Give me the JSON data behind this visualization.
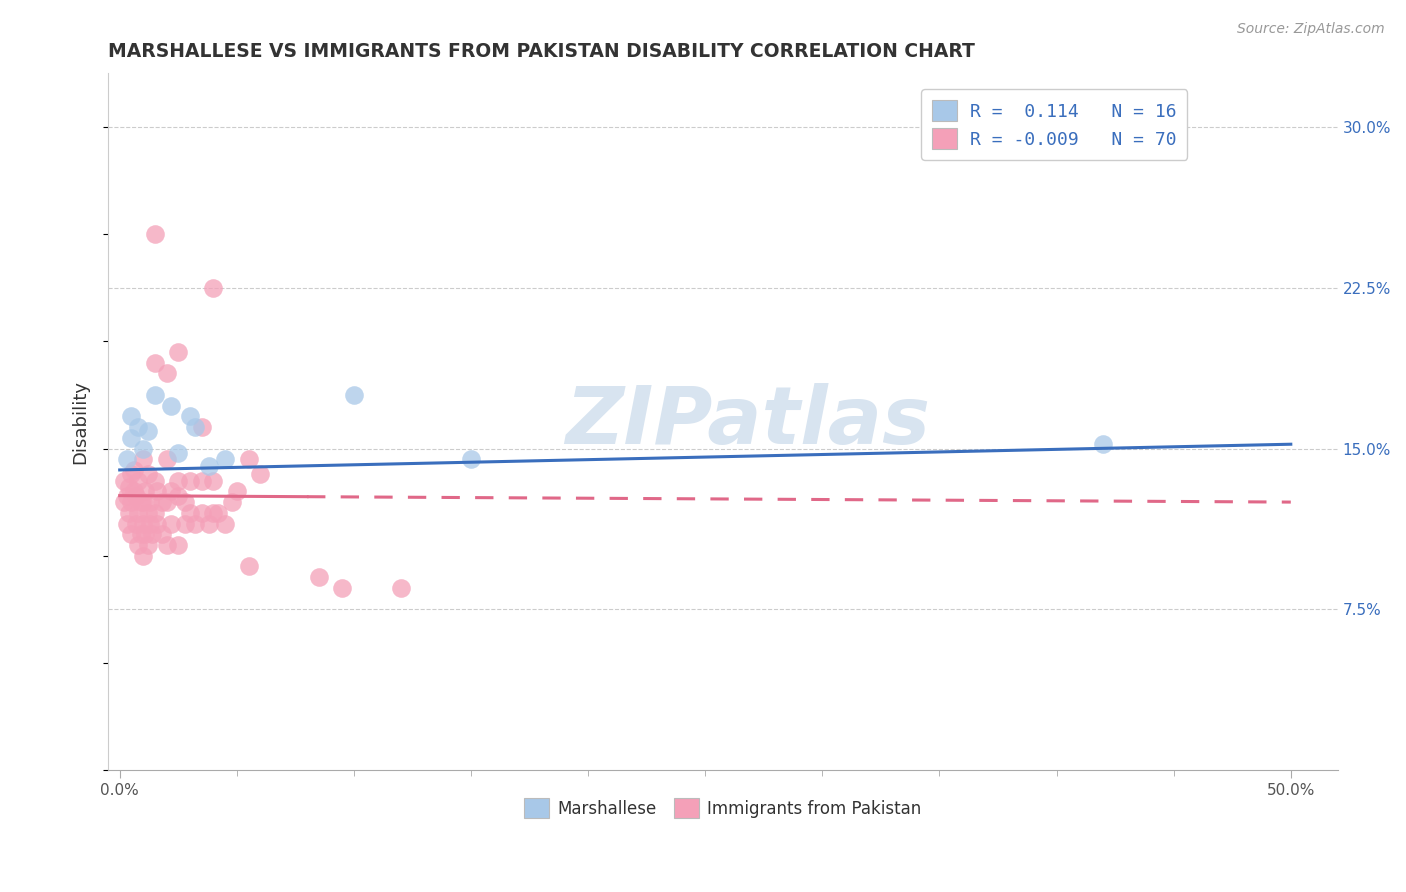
{
  "title": "MARSHALLESE VS IMMIGRANTS FROM PAKISTAN DISABILITY CORRELATION CHART",
  "source": "Source: ZipAtlas.com",
  "ylabel": "Disability",
  "ylim": [
    0.0,
    32.5
  ],
  "xlim": [
    -0.5,
    52.0
  ],
  "yticks_right": [
    7.5,
    15.0,
    22.5,
    30.0
  ],
  "ytick_labels_right": [
    "7.5%",
    "15.0%",
    "22.5%",
    "30.0%"
  ],
  "grid_yticks": [
    7.5,
    15.0,
    22.5,
    30.0
  ],
  "blue_R": 0.114,
  "blue_N": 16,
  "pink_R": -0.009,
  "pink_N": 70,
  "blue_color": "#a8c8e8",
  "pink_color": "#f4a0b8",
  "blue_line_color": "#3a6ebd",
  "pink_line_color": "#e06888",
  "watermark_color": "#d8e4f0",
  "legend_label_blue": "Marshallese",
  "legend_label_pink": "Immigrants from Pakistan",
  "blue_trend_x0": 0.0,
  "blue_trend_y0": 14.0,
  "blue_trend_x1": 50.0,
  "blue_trend_y1": 15.2,
  "pink_trend_x0": 0.0,
  "pink_trend_y0": 12.8,
  "pink_trend_x1": 50.0,
  "pink_trend_y1": 12.5,
  "pink_solid_end": 8.0,
  "blue_scatter_x": [
    0.3,
    0.5,
    0.5,
    0.8,
    1.0,
    1.2,
    1.5,
    2.2,
    2.5,
    3.0,
    3.2,
    3.8,
    4.5,
    10.0,
    15.0,
    42.0
  ],
  "blue_scatter_y": [
    14.5,
    15.5,
    16.5,
    16.0,
    15.0,
    15.8,
    17.5,
    17.0,
    14.8,
    16.5,
    16.0,
    14.2,
    14.5,
    17.5,
    14.5,
    15.2
  ],
  "pink_scatter_x": [
    0.2,
    0.2,
    0.3,
    0.3,
    0.4,
    0.4,
    0.5,
    0.5,
    0.5,
    0.6,
    0.6,
    0.7,
    0.7,
    0.8,
    0.8,
    0.8,
    0.9,
    0.9,
    1.0,
    1.0,
    1.0,
    1.0,
    1.1,
    1.1,
    1.2,
    1.2,
    1.2,
    1.3,
    1.3,
    1.4,
    1.5,
    1.5,
    1.6,
    1.6,
    1.8,
    1.8,
    2.0,
    2.0,
    2.0,
    2.2,
    2.2,
    2.5,
    2.5,
    2.5,
    2.8,
    2.8,
    3.0,
    3.0,
    3.2,
    3.5,
    3.5,
    3.8,
    4.0,
    4.0,
    4.2,
    4.5,
    4.8,
    5.0,
    5.5,
    6.0,
    1.5,
    1.5,
    2.0,
    2.5,
    3.5,
    4.0,
    5.5,
    8.5,
    9.5,
    12.0
  ],
  "pink_scatter_y": [
    12.5,
    13.5,
    11.5,
    12.8,
    12.0,
    13.2,
    11.0,
    12.5,
    13.8,
    13.0,
    14.0,
    11.5,
    12.8,
    10.5,
    12.0,
    13.5,
    11.0,
    12.5,
    10.0,
    11.5,
    12.5,
    14.5,
    11.0,
    13.0,
    10.5,
    12.0,
    13.8,
    11.5,
    12.5,
    11.0,
    12.0,
    13.5,
    11.5,
    13.0,
    11.0,
    12.5,
    10.5,
    12.5,
    14.5,
    11.5,
    13.0,
    10.5,
    12.8,
    13.5,
    11.5,
    12.5,
    12.0,
    13.5,
    11.5,
    12.0,
    13.5,
    11.5,
    12.0,
    13.5,
    12.0,
    11.5,
    12.5,
    13.0,
    14.5,
    13.8,
    19.0,
    25.0,
    18.5,
    19.5,
    16.0,
    22.5,
    9.5,
    9.0,
    8.5,
    8.5
  ]
}
